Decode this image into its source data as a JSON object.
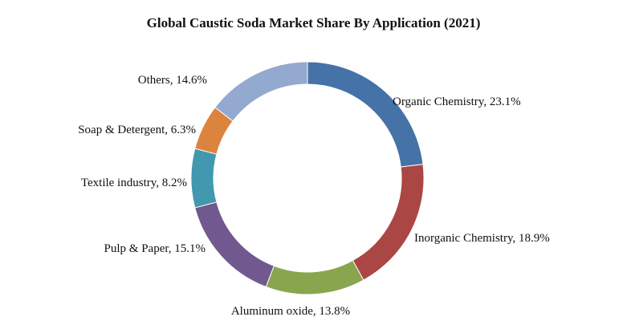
{
  "chart_data": {
    "type": "pie",
    "variant": "donut",
    "title": "Global Caustic Soda Market Share By Application (2021)",
    "start_angle_deg": 0,
    "direction": "clockwise",
    "slices": [
      {
        "name": "Organic Chemistry",
        "value": 23.1,
        "label": "Organic Chemistry, 23.1%",
        "color": "#4572a7"
      },
      {
        "name": "Inorganic Chemistry",
        "value": 18.9,
        "label": "Inorganic Chemistry, 18.9%",
        "color": "#aa4643"
      },
      {
        "name": "Aluminum oxide",
        "value": 13.8,
        "label": "Aluminum  oxide, 13.8%",
        "color": "#89a54e"
      },
      {
        "name": "Pulp & Paper",
        "value": 15.1,
        "label": "Pulp & Paper, 15.1%",
        "color": "#71588f"
      },
      {
        "name": "Textile industry",
        "value": 8.2,
        "label": "Textile industry, 8.2%",
        "color": "#4198af"
      },
      {
        "name": "Soap & Detergent",
        "value": 6.3,
        "label": "Soap & Detergent, 6.3%",
        "color": "#db843d"
      },
      {
        "name": "Others",
        "value": 14.6,
        "label": "Others, 14.6%",
        "color": "#93a9cf"
      }
    ]
  }
}
